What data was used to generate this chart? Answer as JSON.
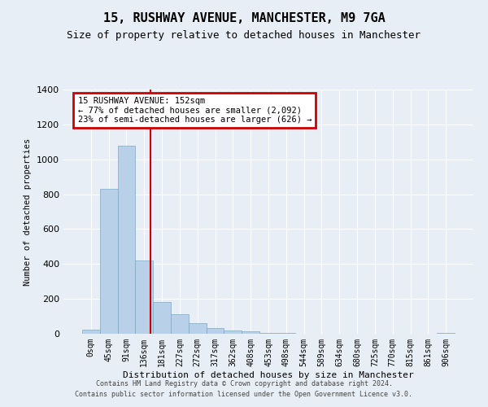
{
  "title": "15, RUSHWAY AVENUE, MANCHESTER, M9 7GA",
  "subtitle": "Size of property relative to detached houses in Manchester",
  "xlabel": "Distribution of detached houses by size in Manchester",
  "ylabel": "Number of detached properties",
  "footnote1": "Contains HM Land Registry data © Crown copyright and database right 2024.",
  "footnote2": "Contains public sector information licensed under the Open Government Licence v3.0.",
  "bar_labels": [
    "0sqm",
    "45sqm",
    "91sqm",
    "136sqm",
    "181sqm",
    "227sqm",
    "272sqm",
    "317sqm",
    "362sqm",
    "408sqm",
    "453sqm",
    "498sqm",
    "544sqm",
    "589sqm",
    "634sqm",
    "680sqm",
    "725sqm",
    "770sqm",
    "815sqm",
    "861sqm",
    "906sqm"
  ],
  "bar_values": [
    25,
    830,
    1080,
    420,
    180,
    110,
    60,
    35,
    20,
    15,
    5,
    5,
    2,
    2,
    1,
    1,
    1,
    1,
    0,
    0,
    5
  ],
  "bar_color": "#b8d0e8",
  "bar_edge_color": "#7aaac8",
  "background_color": "#e8eef5",
  "grid_color": "#ffffff",
  "red_line_x": 3.35,
  "annotation_line1": "15 RUSHWAY AVENUE: 152sqm",
  "annotation_line2": "← 77% of detached houses are smaller (2,092)",
  "annotation_line3": "23% of semi-detached houses are larger (626) →",
  "annotation_box_facecolor": "#ffffff",
  "annotation_box_edgecolor": "#cc0000",
  "ylim": [
    0,
    1400
  ],
  "yticks": [
    0,
    200,
    400,
    600,
    800,
    1000,
    1200,
    1400
  ],
  "title_fontsize": 11,
  "subtitle_fontsize": 9
}
